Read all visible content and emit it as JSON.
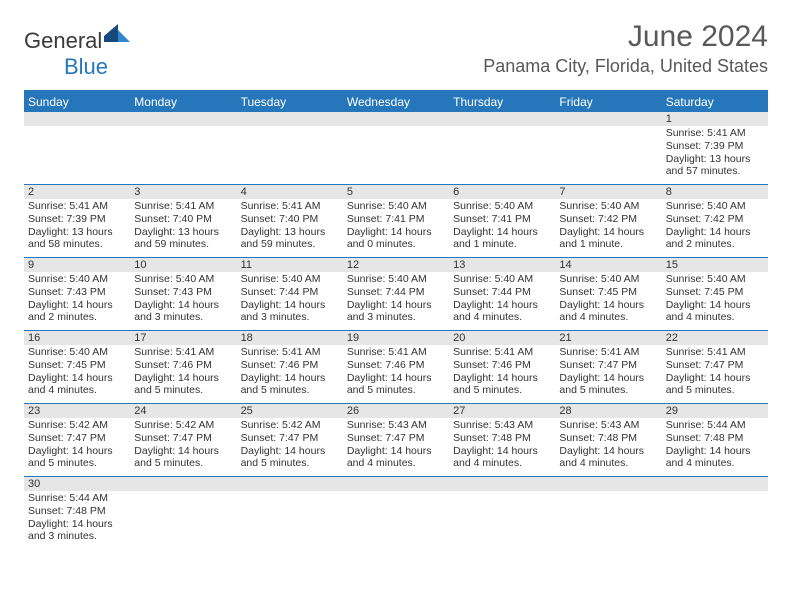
{
  "logo": {
    "text1": "General",
    "text2": "Blue"
  },
  "title": "June 2024",
  "location": "Panama City, Florida, United States",
  "colors": {
    "accent": "#2676bb",
    "header_text": "#595959",
    "daybar_bg": "#e6e6e6",
    "text": "#333333",
    "bg": "#ffffff"
  },
  "weekdays": [
    "Sunday",
    "Monday",
    "Tuesday",
    "Wednesday",
    "Thursday",
    "Friday",
    "Saturday"
  ],
  "weeks": [
    [
      {
        "n": "",
        "lines": []
      },
      {
        "n": "",
        "lines": []
      },
      {
        "n": "",
        "lines": []
      },
      {
        "n": "",
        "lines": []
      },
      {
        "n": "",
        "lines": []
      },
      {
        "n": "",
        "lines": []
      },
      {
        "n": "1",
        "lines": [
          "Sunrise: 5:41 AM",
          "Sunset: 7:39 PM",
          "Daylight: 13 hours",
          "and 57 minutes."
        ]
      }
    ],
    [
      {
        "n": "2",
        "lines": [
          "Sunrise: 5:41 AM",
          "Sunset: 7:39 PM",
          "Daylight: 13 hours",
          "and 58 minutes."
        ]
      },
      {
        "n": "3",
        "lines": [
          "Sunrise: 5:41 AM",
          "Sunset: 7:40 PM",
          "Daylight: 13 hours",
          "and 59 minutes."
        ]
      },
      {
        "n": "4",
        "lines": [
          "Sunrise: 5:41 AM",
          "Sunset: 7:40 PM",
          "Daylight: 13 hours",
          "and 59 minutes."
        ]
      },
      {
        "n": "5",
        "lines": [
          "Sunrise: 5:40 AM",
          "Sunset: 7:41 PM",
          "Daylight: 14 hours",
          "and 0 minutes."
        ]
      },
      {
        "n": "6",
        "lines": [
          "Sunrise: 5:40 AM",
          "Sunset: 7:41 PM",
          "Daylight: 14 hours",
          "and 1 minute."
        ]
      },
      {
        "n": "7",
        "lines": [
          "Sunrise: 5:40 AM",
          "Sunset: 7:42 PM",
          "Daylight: 14 hours",
          "and 1 minute."
        ]
      },
      {
        "n": "8",
        "lines": [
          "Sunrise: 5:40 AM",
          "Sunset: 7:42 PM",
          "Daylight: 14 hours",
          "and 2 minutes."
        ]
      }
    ],
    [
      {
        "n": "9",
        "lines": [
          "Sunrise: 5:40 AM",
          "Sunset: 7:43 PM",
          "Daylight: 14 hours",
          "and 2 minutes."
        ]
      },
      {
        "n": "10",
        "lines": [
          "Sunrise: 5:40 AM",
          "Sunset: 7:43 PM",
          "Daylight: 14 hours",
          "and 3 minutes."
        ]
      },
      {
        "n": "11",
        "lines": [
          "Sunrise: 5:40 AM",
          "Sunset: 7:44 PM",
          "Daylight: 14 hours",
          "and 3 minutes."
        ]
      },
      {
        "n": "12",
        "lines": [
          "Sunrise: 5:40 AM",
          "Sunset: 7:44 PM",
          "Daylight: 14 hours",
          "and 3 minutes."
        ]
      },
      {
        "n": "13",
        "lines": [
          "Sunrise: 5:40 AM",
          "Sunset: 7:44 PM",
          "Daylight: 14 hours",
          "and 4 minutes."
        ]
      },
      {
        "n": "14",
        "lines": [
          "Sunrise: 5:40 AM",
          "Sunset: 7:45 PM",
          "Daylight: 14 hours",
          "and 4 minutes."
        ]
      },
      {
        "n": "15",
        "lines": [
          "Sunrise: 5:40 AM",
          "Sunset: 7:45 PM",
          "Daylight: 14 hours",
          "and 4 minutes."
        ]
      }
    ],
    [
      {
        "n": "16",
        "lines": [
          "Sunrise: 5:40 AM",
          "Sunset: 7:45 PM",
          "Daylight: 14 hours",
          "and 4 minutes."
        ]
      },
      {
        "n": "17",
        "lines": [
          "Sunrise: 5:41 AM",
          "Sunset: 7:46 PM",
          "Daylight: 14 hours",
          "and 5 minutes."
        ]
      },
      {
        "n": "18",
        "lines": [
          "Sunrise: 5:41 AM",
          "Sunset: 7:46 PM",
          "Daylight: 14 hours",
          "and 5 minutes."
        ]
      },
      {
        "n": "19",
        "lines": [
          "Sunrise: 5:41 AM",
          "Sunset: 7:46 PM",
          "Daylight: 14 hours",
          "and 5 minutes."
        ]
      },
      {
        "n": "20",
        "lines": [
          "Sunrise: 5:41 AM",
          "Sunset: 7:46 PM",
          "Daylight: 14 hours",
          "and 5 minutes."
        ]
      },
      {
        "n": "21",
        "lines": [
          "Sunrise: 5:41 AM",
          "Sunset: 7:47 PM",
          "Daylight: 14 hours",
          "and 5 minutes."
        ]
      },
      {
        "n": "22",
        "lines": [
          "Sunrise: 5:41 AM",
          "Sunset: 7:47 PM",
          "Daylight: 14 hours",
          "and 5 minutes."
        ]
      }
    ],
    [
      {
        "n": "23",
        "lines": [
          "Sunrise: 5:42 AM",
          "Sunset: 7:47 PM",
          "Daylight: 14 hours",
          "and 5 minutes."
        ]
      },
      {
        "n": "24",
        "lines": [
          "Sunrise: 5:42 AM",
          "Sunset: 7:47 PM",
          "Daylight: 14 hours",
          "and 5 minutes."
        ]
      },
      {
        "n": "25",
        "lines": [
          "Sunrise: 5:42 AM",
          "Sunset: 7:47 PM",
          "Daylight: 14 hours",
          "and 5 minutes."
        ]
      },
      {
        "n": "26",
        "lines": [
          "Sunrise: 5:43 AM",
          "Sunset: 7:47 PM",
          "Daylight: 14 hours",
          "and 4 minutes."
        ]
      },
      {
        "n": "27",
        "lines": [
          "Sunrise: 5:43 AM",
          "Sunset: 7:48 PM",
          "Daylight: 14 hours",
          "and 4 minutes."
        ]
      },
      {
        "n": "28",
        "lines": [
          "Sunrise: 5:43 AM",
          "Sunset: 7:48 PM",
          "Daylight: 14 hours",
          "and 4 minutes."
        ]
      },
      {
        "n": "29",
        "lines": [
          "Sunrise: 5:44 AM",
          "Sunset: 7:48 PM",
          "Daylight: 14 hours",
          "and 4 minutes."
        ]
      }
    ],
    [
      {
        "n": "30",
        "lines": [
          "Sunrise: 5:44 AM",
          "Sunset: 7:48 PM",
          "Daylight: 14 hours",
          "and 3 minutes."
        ]
      },
      {
        "n": "",
        "lines": []
      },
      {
        "n": "",
        "lines": []
      },
      {
        "n": "",
        "lines": []
      },
      {
        "n": "",
        "lines": []
      },
      {
        "n": "",
        "lines": []
      },
      {
        "n": "",
        "lines": []
      }
    ]
  ]
}
